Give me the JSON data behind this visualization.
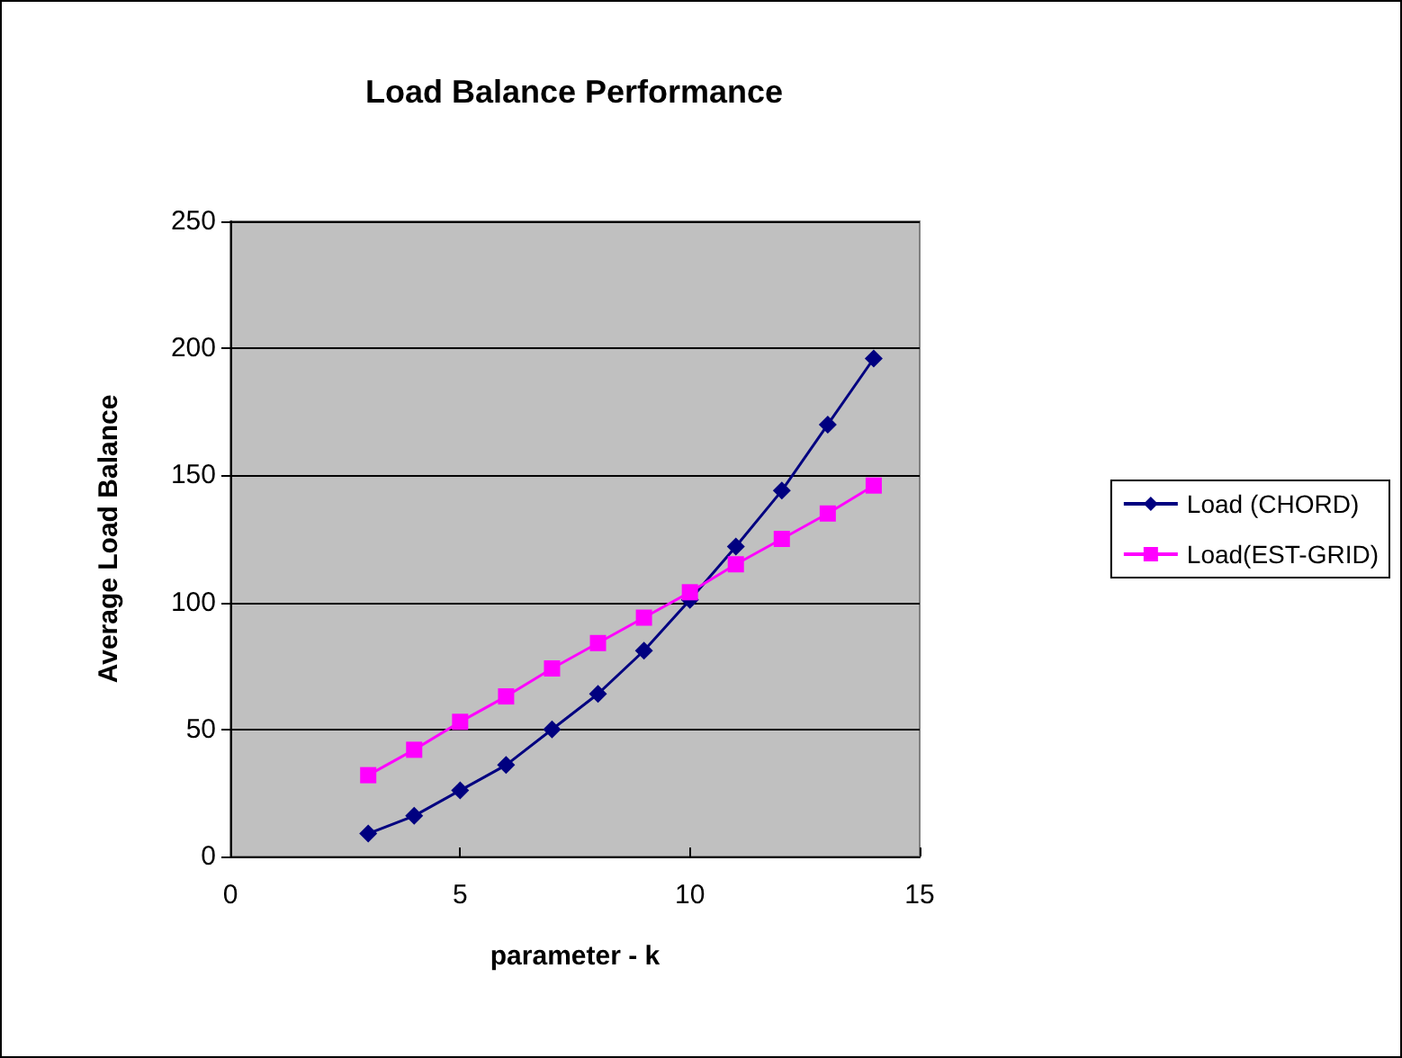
{
  "chart_data": {
    "type": "line",
    "title": "Load Balance Performance",
    "xlabel": "parameter - k",
    "ylabel": "Average Load Balance",
    "x": [
      3,
      4,
      5,
      6,
      7,
      8,
      9,
      10,
      11,
      12,
      13,
      14
    ],
    "series": [
      {
        "name": "Load (CHORD)",
        "color": "#000080",
        "marker": "diamond",
        "values": [
          9,
          16,
          26,
          36,
          50,
          64,
          81,
          101,
          122,
          144,
          170,
          196
        ]
      },
      {
        "name": "Load(EST-GRID)",
        "color": "#ff00ff",
        "marker": "square",
        "values": [
          32,
          42,
          53,
          63,
          74,
          84,
          94,
          104,
          115,
          125,
          135,
          146
        ]
      }
    ],
    "xlim": [
      0,
      15
    ],
    "xticks": [
      0,
      5,
      10,
      15
    ],
    "ylim": [
      0,
      250
    ],
    "yticks": [
      0,
      50,
      100,
      150,
      200,
      250
    ],
    "grid": "y",
    "legend": "right"
  }
}
